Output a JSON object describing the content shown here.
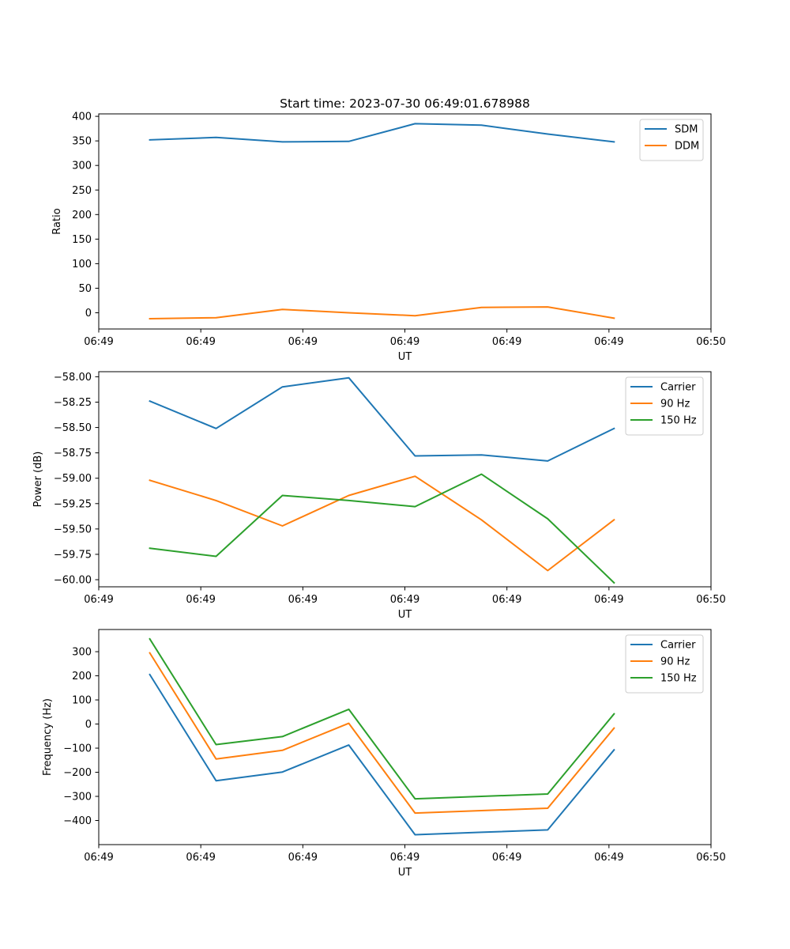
{
  "chart_data": [
    {
      "type": "line",
      "title": "Start time: 2023-07-30 06:49:01.678988",
      "xlabel": "UT",
      "ylabel": "Ratio",
      "x": [
        0.5,
        1.15,
        1.8,
        2.45,
        3.1,
        3.75,
        4.4,
        5.05
      ],
      "xlim": [
        0,
        6
      ],
      "x_ticks": [
        0,
        1,
        2,
        3,
        4,
        5,
        6
      ],
      "x_tick_labels": [
        "06:49",
        "06:49",
        "06:49",
        "06:49",
        "06:49",
        "06:49",
        "06:50"
      ],
      "ylim": [
        -33,
        405
      ],
      "y_ticks": [
        0,
        50,
        100,
        150,
        200,
        250,
        300,
        350,
        400
      ],
      "y_tick_labels": [
        "0",
        "50",
        "100",
        "150",
        "200",
        "250",
        "300",
        "350",
        "400"
      ],
      "legend": "top-right",
      "series": [
        {
          "name": "SDM",
          "color": "#1f77b4",
          "values": [
            352,
            357,
            348,
            349,
            385,
            382,
            364,
            348
          ]
        },
        {
          "name": "DDM",
          "color": "#ff7f0e",
          "values": [
            -12,
            -10,
            7,
            0,
            -6,
            11,
            12,
            -11
          ]
        }
      ]
    },
    {
      "type": "line",
      "title": "",
      "xlabel": "UT",
      "ylabel": "Power (dB)",
      "x": [
        0.5,
        1.15,
        1.8,
        2.45,
        3.1,
        3.75,
        4.4,
        5.05
      ],
      "xlim": [
        0,
        6
      ],
      "x_ticks": [
        0,
        1,
        2,
        3,
        4,
        5,
        6
      ],
      "x_tick_labels": [
        "06:49",
        "06:49",
        "06:49",
        "06:49",
        "06:49",
        "06:49",
        "06:50"
      ],
      "ylim": [
        -60.07,
        -57.95
      ],
      "y_ticks": [
        -60.0,
        -59.75,
        -59.5,
        -59.25,
        -59.0,
        -58.75,
        -58.5,
        -58.25,
        -58.0
      ],
      "y_tick_labels": [
        "−60.00",
        "−59.75",
        "−59.50",
        "−59.25",
        "−59.00",
        "−58.75",
        "−58.50",
        "−58.25",
        "−58.00"
      ],
      "legend": "top-right",
      "series": [
        {
          "name": "Carrier",
          "color": "#1f77b4",
          "values": [
            -58.24,
            -58.51,
            -58.1,
            -58.01,
            -58.78,
            -58.77,
            -58.83,
            -58.51
          ]
        },
        {
          "name": "90 Hz",
          "color": "#ff7f0e",
          "values": [
            -59.02,
            -59.22,
            -59.47,
            -59.17,
            -58.98,
            -59.41,
            -59.91,
            -59.41
          ]
        },
        {
          "name": "150 Hz",
          "color": "#2ca02c",
          "values": [
            -59.69,
            -59.77,
            -59.17,
            -59.22,
            -59.28,
            -58.96,
            -59.4,
            -60.03
          ]
        }
      ]
    },
    {
      "type": "line",
      "title": "",
      "xlabel": "UT",
      "ylabel": "Frequency (Hz)",
      "x": [
        0.5,
        1.15,
        1.8,
        2.45,
        3.1,
        3.75,
        4.4,
        5.05
      ],
      "xlim": [
        0,
        6
      ],
      "x_ticks": [
        0,
        1,
        2,
        3,
        4,
        5,
        6
      ],
      "x_tick_labels": [
        "06:49",
        "06:49",
        "06:49",
        "06:49",
        "06:49",
        "06:49",
        "06:50"
      ],
      "ylim": [
        -500,
        392
      ],
      "y_ticks": [
        -400,
        -300,
        -200,
        -100,
        0,
        100,
        200,
        300
      ],
      "y_tick_labels": [
        "−400",
        "−300",
        "−200",
        "−100",
        "0",
        "100",
        "200",
        "300"
      ],
      "legend": "top-right",
      "series": [
        {
          "name": "Carrier",
          "color": "#1f77b4",
          "values": [
            205,
            -235,
            -199,
            -87,
            -459,
            -449,
            -439,
            -107
          ]
        },
        {
          "name": "90 Hz",
          "color": "#ff7f0e",
          "values": [
            295,
            -145,
            -109,
            3,
            -369,
            -359,
            -349,
            -17
          ]
        },
        {
          "name": "150 Hz",
          "color": "#2ca02c",
          "values": [
            353,
            -85,
            -52,
            61,
            -310,
            -300,
            -290,
            42
          ]
        }
      ]
    }
  ]
}
